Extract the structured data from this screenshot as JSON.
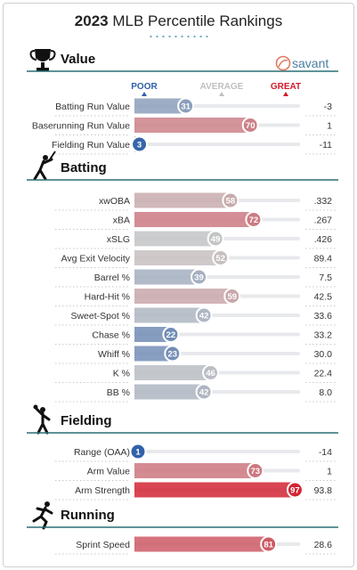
{
  "title": {
    "year": "2023",
    "rest": "MLB Percentile Rankings"
  },
  "brand": {
    "name": "savant",
    "logo_icon": "savant-logo-icon"
  },
  "scale": {
    "poor": "POOR",
    "average": "AVERAGE",
    "great": "GREAT",
    "colors": {
      "poor": "#2e5fa8",
      "average": "#c6c6c6",
      "great": "#d31a2b"
    }
  },
  "sections": [
    {
      "title": "Value",
      "icon": "trophy-icon",
      "rows": [
        {
          "label": "Batting Run Value",
          "percentile": 31,
          "value": "-3"
        },
        {
          "label": "Baserunning Run Value",
          "percentile": 70,
          "value": "1"
        },
        {
          "label": "Fielding Run Value",
          "percentile": 3,
          "value": "-11"
        }
      ]
    },
    {
      "title": "Batting",
      "icon": "batter-icon",
      "rows": [
        {
          "label": "xwOBA",
          "percentile": 58,
          "value": ".332"
        },
        {
          "label": "xBA",
          "percentile": 72,
          "value": ".267"
        },
        {
          "label": "xSLG",
          "percentile": 49,
          "value": ".426"
        },
        {
          "label": "Avg Exit Velocity",
          "percentile": 52,
          "value": "89.4"
        },
        {
          "label": "Barrel %",
          "percentile": 39,
          "value": "7.5"
        },
        {
          "label": "Hard-Hit %",
          "percentile": 59,
          "value": "42.5"
        },
        {
          "label": "Sweet-Spot %",
          "percentile": 42,
          "value": "33.6"
        },
        {
          "label": "Chase %",
          "percentile": 22,
          "value": "33.2"
        },
        {
          "label": "Whiff %",
          "percentile": 23,
          "value": "30.0"
        },
        {
          "label": "K %",
          "percentile": 46,
          "value": "22.4"
        },
        {
          "label": "BB %",
          "percentile": 42,
          "value": "8.0"
        }
      ]
    },
    {
      "title": "Fielding",
      "icon": "fielder-icon",
      "rows": [
        {
          "label": "Range (OAA)",
          "percentile": 1,
          "value": "-14"
        },
        {
          "label": "Arm Value",
          "percentile": 73,
          "value": "1"
        },
        {
          "label": "Arm Strength",
          "percentile": 97,
          "value": "93.8"
        }
      ]
    },
    {
      "title": "Running",
      "icon": "runner-icon",
      "rows": [
        {
          "label": "Sprint Speed",
          "percentile": 81,
          "value": "28.6"
        }
      ]
    }
  ],
  "chart_data": {
    "type": "bar",
    "categories": [
      "Batting Run Value",
      "Baserunning Run Value",
      "Fielding Run Value",
      "xwOBA",
      "xBA",
      "xSLG",
      "Avg Exit Velocity",
      "Barrel %",
      "Hard-Hit %",
      "Sweet-Spot %",
      "Chase %",
      "Whiff %",
      "K %",
      "BB %",
      "Range (OAA)",
      "Arm Value",
      "Arm Strength",
      "Sprint Speed"
    ],
    "values": [
      31,
      70,
      3,
      58,
      72,
      49,
      52,
      39,
      59,
      42,
      22,
      23,
      46,
      42,
      1,
      73,
      97,
      81
    ],
    "stat_values": [
      "-3",
      "1",
      "-11",
      ".332",
      ".267",
      ".426",
      "89.4",
      "7.5",
      "42.5",
      "33.6",
      "33.2",
      "30.0",
      "22.4",
      "8.0",
      "-14",
      "1",
      "93.8",
      "28.6"
    ],
    "title": "2023 MLB Percentile Rankings",
    "xlim": [
      0,
      100
    ],
    "grid": false
  }
}
